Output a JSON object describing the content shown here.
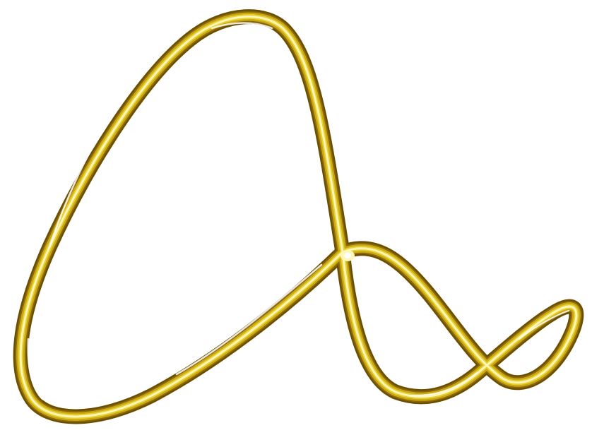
{
  "artwork": {
    "subject": "gold-ribbon-loop",
    "colors": {
      "background": "#ffffff",
      "outline": "#6b4e00",
      "shadow": "#8a6a08",
      "gold": "#c9a814",
      "gold_bright": "#e8d030",
      "highlight": "#fff6b8",
      "shine": "#ffffff"
    }
  }
}
